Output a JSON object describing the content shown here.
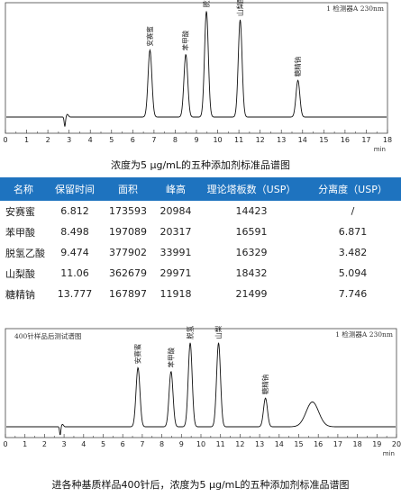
{
  "chart_data": [
    {
      "type": "line",
      "title": "",
      "xlabel": "min",
      "xlim": [
        0,
        18
      ],
      "x_ticks": [
        "0",
        "1",
        "2",
        "3",
        "4",
        "5",
        "6",
        "7",
        "8",
        "9",
        "10",
        "11",
        "12",
        "13",
        "14",
        "15",
        "16",
        "17",
        "18"
      ],
      "detector_label": "1 检测器A 230nm",
      "dip_time": 2.8,
      "peaks": [
        {
          "name": "安赛蜜",
          "time": 6.81,
          "height": 0.62
        },
        {
          "name": "苯甲酸",
          "time": 8.5,
          "height": 0.58
        },
        {
          "name": "脱氢乙酸",
          "time": 9.47,
          "height": 0.98
        },
        {
          "name": "山梨酸",
          "time": 11.06,
          "height": 0.9
        },
        {
          "name": "糖精钠",
          "time": 13.78,
          "height": 0.34
        }
      ]
    },
    {
      "type": "line",
      "title": "",
      "xlabel": "min",
      "xlim": [
        0,
        20
      ],
      "x_ticks": [
        "0",
        "1",
        "2",
        "3",
        "4",
        "5",
        "6",
        "7",
        "8",
        "9",
        "10",
        "11",
        "12",
        "13",
        "14",
        "15",
        "16",
        "17",
        "18",
        "19",
        "20"
      ],
      "detector_label": "1 检测器A 230nm",
      "corner_label": "400针样品后测试谱图",
      "dip_time": 2.8,
      "peaks": [
        {
          "name": "安赛蜜",
          "time": 6.78,
          "height": 0.62
        },
        {
          "name": "苯甲酸",
          "time": 8.47,
          "height": 0.58
        },
        {
          "name": "脱氢乙酸",
          "time": 9.45,
          "height": 0.88
        },
        {
          "name": "山梨酸",
          "time": 10.9,
          "height": 0.88
        },
        {
          "name": "糖精钠",
          "time": 13.3,
          "height": 0.3
        },
        {
          "name": "",
          "time": 15.7,
          "height": 0.26
        }
      ]
    }
  ],
  "caption_top": "浓度为5 μg/mL的五种添加剂标准品谱图",
  "caption_bottom": "进各种基质样品400针后，浓度为5 μg/mL的五种添加剂标准品谱图",
  "table": {
    "headers": [
      "名称",
      "保留时间",
      "面积",
      "峰高",
      "理论塔板数（USP）",
      "分离度（USP）"
    ],
    "rows": [
      [
        "安赛蜜",
        "6.812",
        "173593",
        "20984",
        "14423",
        "/"
      ],
      [
        "苯甲酸",
        "8.498",
        "197089",
        "20317",
        "16591",
        "6.871"
      ],
      [
        "脱氢乙酸",
        "9.474",
        "377902",
        "33991",
        "16329",
        "3.482"
      ],
      [
        "山梨酸",
        "11.06",
        "362679",
        "29971",
        "18432",
        "5.094"
      ],
      [
        "糖精钠",
        "13.777",
        "167897",
        "11918",
        "21499",
        "7.746"
      ]
    ]
  }
}
